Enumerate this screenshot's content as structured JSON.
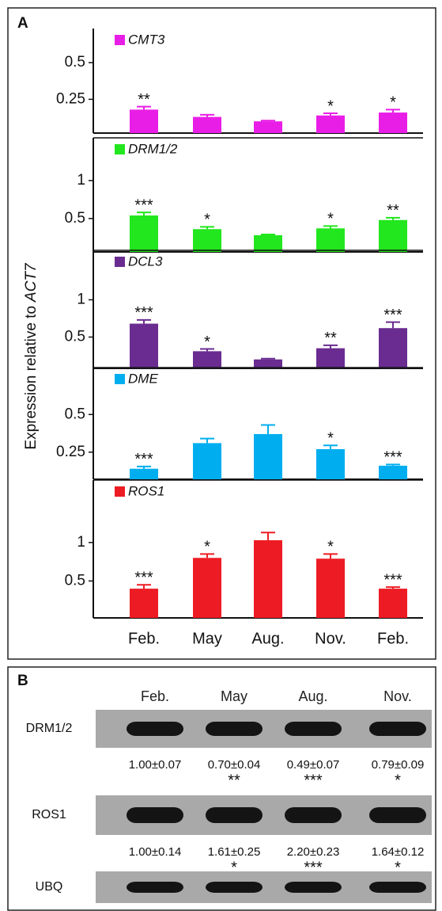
{
  "panel_a": {
    "label": "A",
    "ylabel": "Expression relative to",
    "ylabel_gene": "ACT7"
  },
  "chart_data": [
    {
      "type": "bar",
      "title": "CMT3",
      "color": "#e91ee6",
      "categories": [
        null,
        null,
        null,
        null,
        null
      ],
      "values": [
        0.18,
        0.13,
        0.1,
        0.14,
        0.16
      ],
      "errors": [
        0.02,
        0.015,
        0.005,
        0.015,
        0.02
      ],
      "annotations": [
        "**",
        null,
        null,
        "*",
        "*"
      ],
      "ylim": [
        0.02,
        0.7
      ],
      "yticks": [
        0.25,
        0.5
      ]
    },
    {
      "type": "bar",
      "title": "DRM1/2",
      "color": "#22e61e",
      "categories": [
        null,
        null,
        null,
        null,
        null
      ],
      "values": [
        0.54,
        0.36,
        0.28,
        0.37,
        0.48
      ],
      "errors": [
        0.04,
        0.03,
        0.01,
        0.03,
        0.03
      ],
      "annotations": [
        "***",
        "*",
        null,
        "*",
        "**"
      ],
      "ylim": [
        0.06,
        1.5
      ],
      "yticks": [
        0.5,
        1
      ]
    },
    {
      "type": "bar",
      "title": "DCL3",
      "color": "#6a2c91",
      "categories": [
        null,
        null,
        null,
        null,
        null
      ],
      "values": [
        0.68,
        0.31,
        0.2,
        0.35,
        0.62
      ],
      "errors": [
        0.05,
        0.03,
        0.01,
        0.04,
        0.08
      ],
      "annotations": [
        "***",
        "*",
        null,
        "**",
        "***"
      ],
      "ylim": [
        0.08,
        1.6
      ],
      "yticks": [
        0.5,
        1
      ]
    },
    {
      "type": "bar",
      "title": "DME",
      "color": "#00aeef",
      "categories": [
        null,
        null,
        null,
        null,
        null
      ],
      "values": [
        0.14,
        0.31,
        0.37,
        0.27,
        0.16
      ],
      "errors": [
        0.015,
        0.03,
        0.06,
        0.025,
        0.008
      ],
      "annotations": [
        "***",
        null,
        null,
        "*",
        "***"
      ],
      "ylim": [
        0.07,
        0.78
      ],
      "yticks": [
        0.25,
        0.5
      ]
    },
    {
      "type": "bar",
      "title": "ROS1",
      "color": "#ed1c24",
      "categories": [
        "Feb.",
        "May",
        "Aug.",
        "Nov.",
        "Feb."
      ],
      "values": [
        0.4,
        0.8,
        1.03,
        0.79,
        0.4
      ],
      "errors": [
        0.05,
        0.05,
        0.1,
        0.06,
        0.02
      ],
      "annotations": [
        "***",
        "*",
        null,
        "*",
        "***"
      ],
      "ylim": [
        0.02,
        1.75
      ],
      "yticks": [
        0.5,
        1
      ]
    }
  ],
  "panel_b": {
    "label": "B",
    "columns": [
      "Feb.",
      "May",
      "Aug.",
      "Nov."
    ],
    "rows": [
      {
        "name": "DRM1/2",
        "quant": [
          "1.00±0.07",
          "0.70±0.04",
          "0.49±0.07",
          "0.79±0.09"
        ],
        "stars": [
          null,
          "**",
          "***",
          "*"
        ]
      },
      {
        "name": "ROS1",
        "quant": [
          "1.00±0.14",
          "1.61±0.25",
          "2.20±0.23",
          "1.64±0.12"
        ],
        "stars": [
          null,
          "*",
          "***",
          "*"
        ]
      },
      {
        "name": "UBQ"
      }
    ]
  }
}
